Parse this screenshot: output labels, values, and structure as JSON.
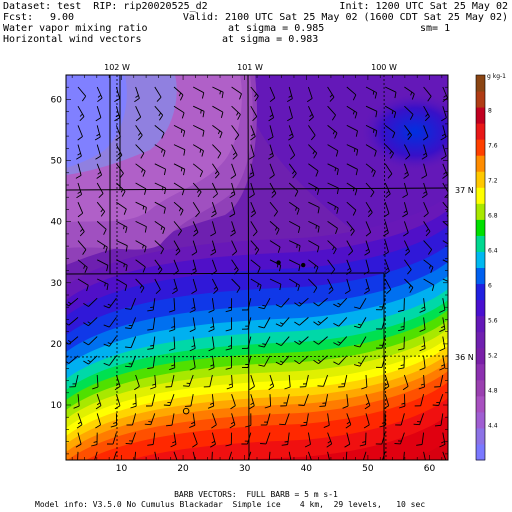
{
  "header": {
    "dataset_line": "Dataset: test  RIP: rip20020525_d2",
    "init_line": "Init: 1200 UTC Sat 25 May 02",
    "fcst_label": "Fcst:",
    "fcst_value": "9.00",
    "valid_line": "Valid: 2100 UTC Sat 25 May 02 (1600 CDT Sat 25 May 02)",
    "field1_name": "Water vapor mixing ratio",
    "field1_level": "at sigma = 0.985",
    "field1_extra": "sm= 1",
    "field2_name": "Horizontal wind vectors",
    "field2_level": "at sigma = 0.983"
  },
  "map": {
    "longitude_labels": [
      "102 W",
      "101 W",
      "100 W"
    ],
    "latitude_labels": [
      "37 N",
      "36 N"
    ],
    "x_ticks": [
      "10",
      "20",
      "30",
      "40",
      "50",
      "60"
    ],
    "y_ticks": [
      "10",
      "20",
      "30",
      "40",
      "50",
      "60"
    ],
    "x_range": [
      1,
      63
    ],
    "y_range": [
      1,
      64
    ],
    "stations": [
      {
        "x": 35.5,
        "y": 33.3
      },
      {
        "x": 39.5,
        "y": 32.9
      }
    ],
    "open_marker": {
      "x": 20.5,
      "y": 9.0
    }
  },
  "colorbar": {
    "unit": "g kg-1",
    "labels": [
      "8",
      "7.6",
      "7.2",
      "6.8",
      "6.4",
      "6",
      "5.6",
      "5.2",
      "4.8",
      "4.4"
    ],
    "range": [
      4.0,
      8.4
    ],
    "colors": [
      "#7a78ff",
      "#8c72e6",
      "#a05ed2",
      "#a850c0",
      "#9a40b0",
      "#8c30b0",
      "#7a20a8",
      "#7020b0",
      "#6418b8",
      "#4a10d0",
      "#2020e0",
      "#0060f0",
      "#00b8f0",
      "#00d890",
      "#00e000",
      "#a8e800",
      "#ffff00",
      "#ffc800",
      "#ff8c00",
      "#ff4000",
      "#e81818",
      "#c00020",
      "#b03c14",
      "#8b4513"
    ]
  },
  "footer": {
    "barb_note": "BARB VECTORS:  FULL BARB = 5 m s-1",
    "model_info": "Model info: V3.5.0 No Cumulus Blackadar  Simple ice    4 km,  29 levels,   10 sec"
  }
}
